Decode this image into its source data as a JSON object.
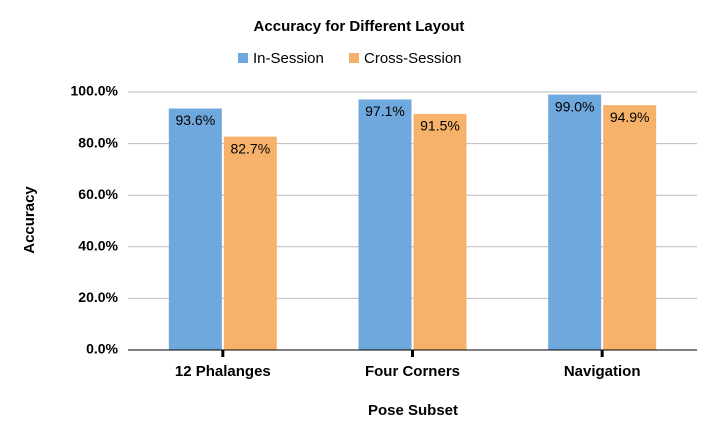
{
  "chart_data": {
    "type": "bar",
    "title": "Accuracy for Different Layout",
    "x_label": "Pose Subset",
    "y_label": "Accuracy",
    "categories": [
      "12 Phalanges",
      "Four Corners",
      "Navigation"
    ],
    "series": [
      {
        "name": "In-Session",
        "color": "#6fa8dc",
        "values": [
          93.6,
          97.1,
          99.0
        ],
        "value_labels": [
          "93.6%",
          "97.1%",
          "99.0%"
        ]
      },
      {
        "name": "Cross-Session",
        "color": "#f6b26b",
        "values": [
          82.7,
          91.5,
          94.9
        ],
        "value_labels": [
          "82.7%",
          "91.5%",
          "94.9%"
        ]
      }
    ],
    "ylim": [
      0,
      100
    ],
    "yticks": [
      {
        "value": 0,
        "label": "0.0%"
      },
      {
        "value": 20,
        "label": "20.0%"
      },
      {
        "value": 40,
        "label": "40.0%"
      },
      {
        "value": 60,
        "label": "60.0%"
      },
      {
        "value": 80,
        "label": "80.0%"
      },
      {
        "value": 100,
        "label": "100.0%"
      }
    ],
    "grid": true
  }
}
